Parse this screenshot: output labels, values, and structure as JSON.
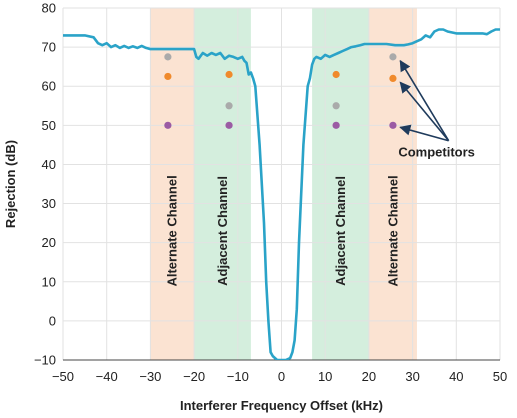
{
  "chart_data": {
    "type": "line",
    "title": "",
    "xlabel": "Interferer Frequency Offset (kHz)",
    "ylabel": "Rejection (dB)",
    "xlim": [
      -50,
      50
    ],
    "ylim": [
      -10,
      80
    ],
    "xticks": [
      -50,
      -40,
      -30,
      -20,
      -10,
      0,
      10,
      20,
      30,
      40,
      50
    ],
    "yticks": [
      -10,
      0,
      10,
      20,
      30,
      40,
      50,
      60,
      70,
      80
    ],
    "grid": true,
    "line_color": "#2aa3c8",
    "bands": [
      {
        "label": "Alternate Channel",
        "x0": -30,
        "x1": -20,
        "color": "#fbe3d2"
      },
      {
        "label": "Adjacent Channel",
        "x0": -20,
        "x1": -7,
        "color": "#d4eedd"
      },
      {
        "label": "Adjacent Channel",
        "x0": 7,
        "x1": 20,
        "color": "#d4eedd"
      },
      {
        "label": "Alternate Channel",
        "x0": 20,
        "x1": 31,
        "color": "#fbe3d2"
      }
    ],
    "series": [
      {
        "x": [
          -50,
          -45,
          -43,
          -42,
          -41,
          -40,
          -39,
          -38,
          -37,
          -36,
          -35,
          -34,
          -33,
          -32,
          -31,
          -30,
          -28,
          -26,
          -24,
          -22,
          -20,
          -19.5,
          -19,
          -18,
          -17,
          -16,
          -15,
          -14,
          -13,
          -12,
          -11,
          -10,
          -9,
          -8.5,
          -8,
          -7.5,
          -7,
          -6.5,
          -6,
          -5,
          -4,
          -3.5,
          -3,
          -2.5,
          -2,
          -1,
          0,
          1,
          2,
          2.5,
          3,
          3.5,
          4,
          5,
          6,
          6.5,
          7,
          7.5,
          8,
          9,
          10,
          11,
          12,
          13,
          14,
          15,
          16,
          17,
          18,
          19,
          20,
          22,
          24,
          26,
          27,
          28,
          29,
          30,
          31,
          32,
          33,
          34,
          35,
          36,
          37,
          38,
          40,
          42,
          44,
          46,
          47,
          48,
          49,
          50
        ],
        "y": [
          73,
          73,
          72.5,
          71,
          70.5,
          71,
          70,
          70.5,
          69.8,
          70.3,
          69.8,
          70.2,
          69.8,
          70.3,
          69.8,
          69.5,
          69.5,
          69.5,
          69.5,
          69.5,
          69.5,
          67.5,
          67,
          68.5,
          67.8,
          68.5,
          68,
          68.5,
          67,
          67.8,
          67.5,
          67,
          67.5,
          66.5,
          66,
          63,
          63.5,
          62,
          60,
          45,
          25,
          10,
          0,
          -8,
          -9,
          -10,
          -10,
          -10,
          -9.5,
          -8,
          -5,
          3,
          20,
          45,
          60,
          62,
          65.5,
          67,
          67.5,
          67,
          68,
          67.5,
          68,
          68.5,
          69,
          69.5,
          70,
          70.2,
          70.5,
          70.8,
          70.8,
          70.8,
          70.8,
          70.5,
          70.5,
          70.5,
          70.7,
          71,
          71.5,
          72,
          73,
          72.5,
          74,
          74.5,
          74.5,
          74,
          73.5,
          73.5,
          73.5,
          73.5,
          73.3,
          74,
          74.5,
          74.5
        ]
      }
    ],
    "competitor_markers": [
      {
        "x": -26,
        "y": 67.5,
        "color": "#aaaaaa"
      },
      {
        "x": -26,
        "y": 62.5,
        "color": "#f08a2c"
      },
      {
        "x": -26,
        "y": 50,
        "color": "#9b5ba4"
      },
      {
        "x": -12,
        "y": 63,
        "color": "#f08a2c"
      },
      {
        "x": -12,
        "y": 55,
        "color": "#aaaaaa"
      },
      {
        "x": -12,
        "y": 50,
        "color": "#9b5ba4"
      },
      {
        "x": 12.5,
        "y": 63,
        "color": "#f08a2c"
      },
      {
        "x": 12.5,
        "y": 55,
        "color": "#aaaaaa"
      },
      {
        "x": 12.5,
        "y": 50,
        "color": "#9b5ba4"
      },
      {
        "x": 25.5,
        "y": 67.5,
        "color": "#aaaaaa"
      },
      {
        "x": 25.5,
        "y": 62,
        "color": "#f08a2c"
      },
      {
        "x": 25.5,
        "y": 50,
        "color": "#9b5ba4"
      }
    ],
    "annotation": {
      "text": "Competitors",
      "text_x": 35.5,
      "text_y": 43,
      "targets": [
        {
          "x": 26.5,
          "y": 67
        },
        {
          "x": 26.5,
          "y": 61.5
        },
        {
          "x": 26.5,
          "y": 50
        }
      ]
    }
  }
}
